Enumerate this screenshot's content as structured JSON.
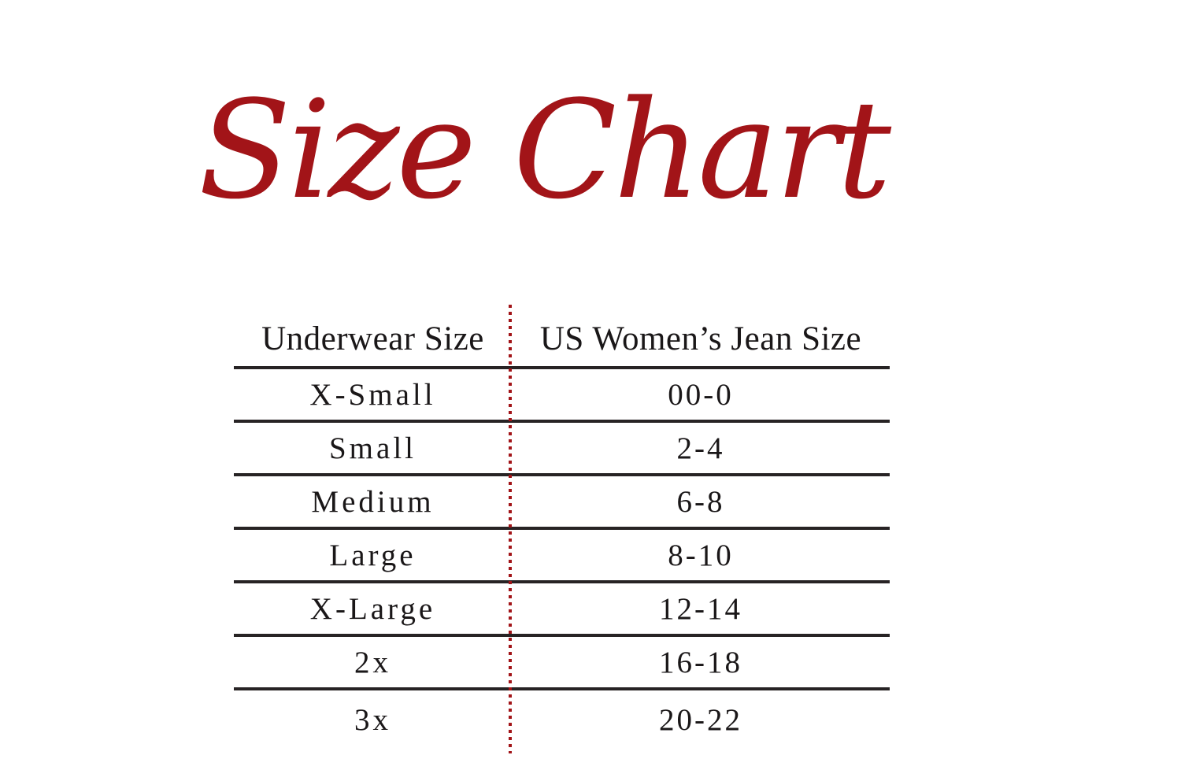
{
  "title": "Size Chart",
  "colors": {
    "accent_red": "#a21418",
    "line_dark": "#272324",
    "text_dark": "#1a1718",
    "page_bg": "#ffffff"
  },
  "table": {
    "headers": [
      "Underwear Size",
      "US Women’s Jean Size"
    ],
    "rows": [
      {
        "size": "X-Small",
        "jean": "00-0"
      },
      {
        "size": "Small",
        "jean": "2-4"
      },
      {
        "size": "Medium",
        "jean": "6-8"
      },
      {
        "size": "Large",
        "jean": "8-10"
      },
      {
        "size": "X-Large",
        "jean": "12-14"
      },
      {
        "size": "2x",
        "jean": "16-18"
      },
      {
        "size": "3x",
        "jean": "20-22"
      }
    ]
  },
  "chart_data": {
    "type": "table",
    "title": "Size Chart",
    "columns": [
      "Underwear Size",
      "US Women’s Jean Size"
    ],
    "rows": [
      [
        "X-Small",
        "00-0"
      ],
      [
        "Small",
        "2-4"
      ],
      [
        "Medium",
        "6-8"
      ],
      [
        "Large",
        "8-10"
      ],
      [
        "X-Large",
        "12-14"
      ],
      [
        "2x",
        "16-18"
      ],
      [
        "3x",
        "20-22"
      ]
    ]
  }
}
